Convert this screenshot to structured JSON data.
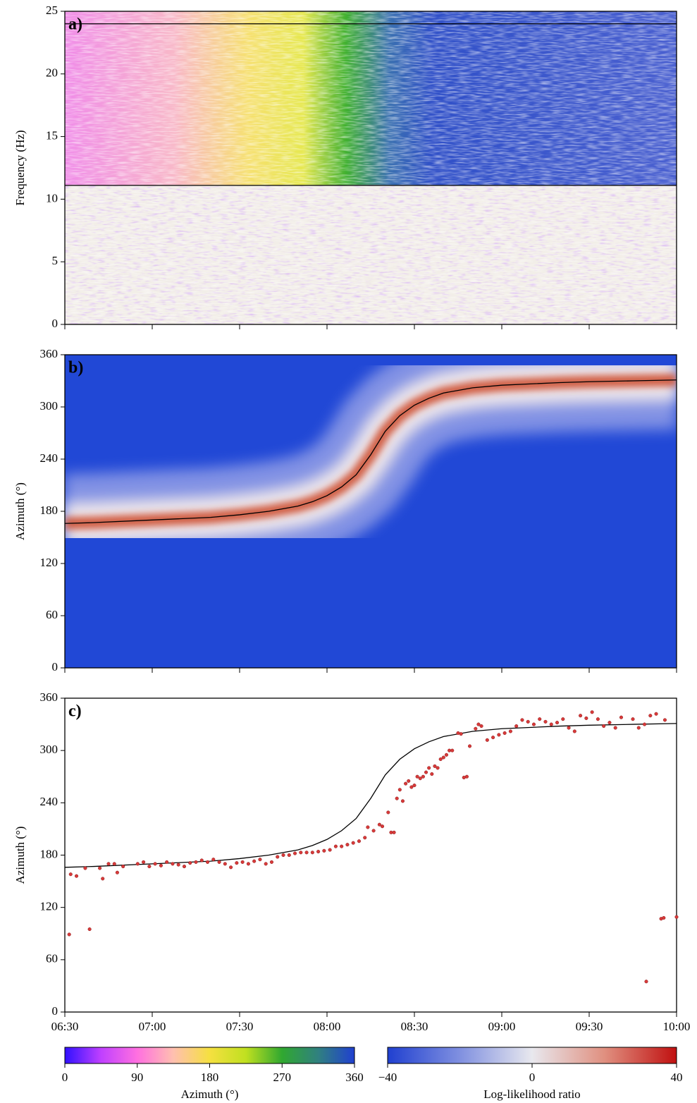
{
  "chart_data": [
    {
      "type": "heatmap",
      "panel_label": "a)",
      "ylabel": "Frequency (Hz)",
      "xlim": [
        390,
        600
      ],
      "xticks": [
        390,
        420,
        450,
        480,
        510,
        540,
        570,
        600
      ],
      "xticklabels": false,
      "ylim": [
        0,
        25
      ],
      "yticks": [
        0,
        5,
        10,
        15,
        20,
        25
      ],
      "hlines": [
        11.1,
        24
      ],
      "line_color": "#000000"
    },
    {
      "type": "heatmap",
      "panel_label": "b)",
      "ylabel": "Azimuth (°)",
      "xlim": [
        390,
        600
      ],
      "xticks": [
        390,
        420,
        450,
        480,
        510,
        540,
        570,
        600
      ],
      "xticklabels": false,
      "ylim": [
        0,
        360
      ],
      "yticks": [
        0,
        60,
        120,
        180,
        240,
        300,
        360
      ],
      "series": [
        {
          "color": "#000000",
          "x": [
            390,
            400,
            420,
            440,
            450,
            460,
            470,
            475,
            480,
            485,
            490,
            495,
            500,
            505,
            510,
            515,
            520,
            530,
            540,
            560,
            570,
            585,
            600
          ],
          "values": [
            166,
            167,
            170,
            173,
            176,
            180,
            186,
            191,
            198,
            208,
            222,
            245,
            272,
            290,
            302,
            310,
            316,
            322,
            325,
            328,
            329,
            330,
            331
          ]
        }
      ]
    },
    {
      "type": "scatter",
      "panel_label": "c)",
      "ylabel": "Azimuth (°)",
      "xlim": [
        390,
        600
      ],
      "xticks": [
        {
          "value": 390,
          "label": "06:30"
        },
        {
          "value": 420,
          "label": "07:00"
        },
        {
          "value": 450,
          "label": "07:30"
        },
        {
          "value": 480,
          "label": "08:00"
        },
        {
          "value": 510,
          "label": "08:30"
        },
        {
          "value": 540,
          "label": "09:00"
        },
        {
          "value": 570,
          "label": "09:30"
        },
        {
          "value": 600,
          "label": "10:00"
        }
      ],
      "xticklabels": true,
      "ylim": [
        0,
        360
      ],
      "yticks": [
        0,
        60,
        120,
        180,
        240,
        300,
        360
      ],
      "series": [
        {
          "color": "#000000",
          "x": [
            390,
            400,
            420,
            440,
            450,
            460,
            470,
            475,
            480,
            485,
            490,
            495,
            500,
            505,
            510,
            515,
            520,
            530,
            540,
            560,
            570,
            585,
            600
          ],
          "values": [
            166,
            167,
            170,
            173,
            176,
            180,
            186,
            191,
            198,
            208,
            222,
            245,
            272,
            290,
            302,
            310,
            316,
            322,
            325,
            328,
            329,
            330,
            331
          ]
        },
        {
          "color": "#d83a3a",
          "x": [
            391.5,
            398.5,
            589.6,
            594.7,
            595.6,
            600,
            392,
            394,
            397,
            402,
            403,
            405,
            407,
            408,
            410,
            415,
            417,
            419,
            421,
            423,
            425,
            427,
            429,
            431,
            433,
            435,
            437,
            439,
            441,
            443,
            445,
            447,
            449,
            451,
            453,
            455,
            457,
            459,
            461,
            463,
            465,
            467,
            469,
            471,
            473,
            475,
            477,
            479,
            481,
            483,
            485,
            487,
            489,
            491,
            493,
            494,
            496,
            498,
            499,
            501,
            502,
            503,
            504,
            505,
            506,
            507,
            508,
            509,
            510,
            511,
            512,
            513,
            514,
            515,
            516,
            517,
            518,
            519,
            520,
            521,
            522,
            523,
            525,
            526,
            527,
            528,
            529,
            531,
            532,
            533,
            535,
            537,
            539,
            541,
            543,
            545,
            547,
            549,
            551,
            553,
            555,
            557,
            559,
            561,
            563,
            565,
            567,
            569,
            571,
            573,
            575,
            577,
            579,
            581,
            585,
            587,
            589,
            591,
            593,
            596
          ],
          "values": [
            89,
            95,
            35,
            107,
            108,
            109,
            158,
            156,
            165,
            165,
            153,
            170,
            170,
            160,
            167,
            170,
            172,
            167,
            170,
            168,
            172,
            170,
            169,
            167,
            171,
            172,
            174,
            172,
            175,
            172,
            170,
            166,
            171,
            172,
            170,
            173,
            175,
            170,
            172,
            178,
            180,
            180,
            182,
            183,
            183,
            183,
            184,
            185,
            186,
            190,
            190,
            192,
            194,
            196,
            200,
            212,
            208,
            215,
            213,
            229,
            206,
            206,
            245,
            255,
            242,
            262,
            265,
            258,
            260,
            270,
            268,
            270,
            275,
            280,
            273,
            282,
            280,
            290,
            292,
            295,
            300,
            300,
            320,
            319,
            269,
            270,
            305,
            325,
            330,
            328,
            312,
            315,
            318,
            320,
            322,
            328,
            335,
            333,
            330,
            336,
            333,
            330,
            332,
            336,
            326,
            322,
            340,
            337,
            344,
            336,
            328,
            332,
            326,
            338,
            336,
            326,
            330,
            340,
            342,
            335
          ]
        }
      ]
    },
    {
      "type": "colorbar",
      "label": "Azimuth (°)",
      "clim": [
        0,
        360
      ],
      "ticks": [
        0,
        90,
        180,
        270,
        360
      ],
      "colors": [
        "#3010ff",
        "#c040ff",
        "#ff70e0",
        "#ffc0b0",
        "#f5e040",
        "#c0e020",
        "#30a830",
        "#308080",
        "#2040d0"
      ]
    },
    {
      "type": "colorbar",
      "label": "Log-likelihood ratio",
      "clim": [
        -40,
        40
      ],
      "ticks": [
        {
          "value": -40,
          "label": "−40"
        },
        0,
        40
      ],
      "colors": [
        "#2040d0",
        "#8090e0",
        "#e8e8ee",
        "#e09080",
        "#c01010"
      ]
    }
  ]
}
